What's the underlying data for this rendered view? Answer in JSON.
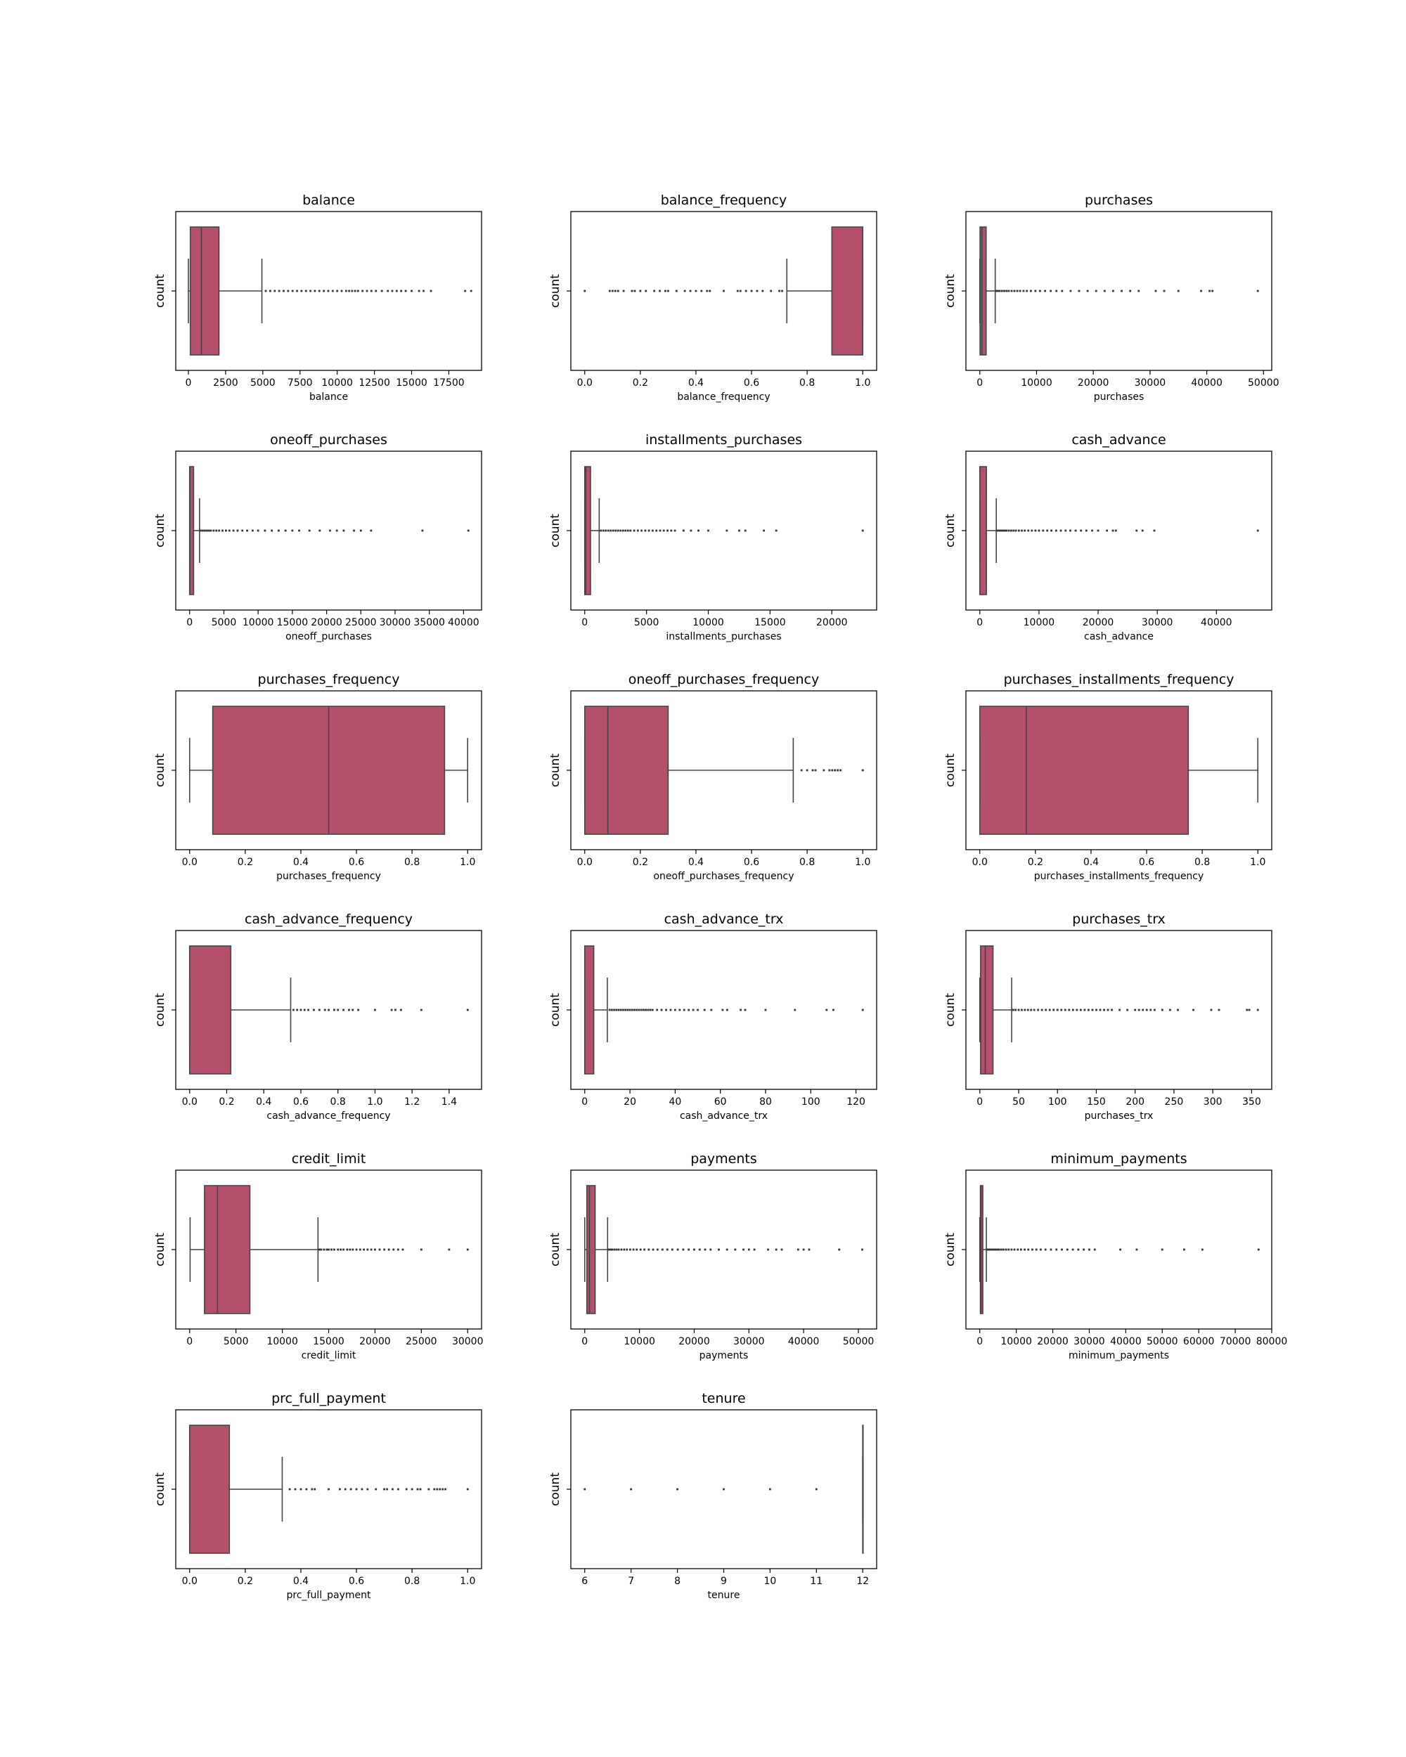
{
  "figure": {
    "box_color": "#b5506b",
    "line_color": "#444444"
  },
  "chart_data": [
    {
      "type": "box",
      "title": "balance",
      "xlabel": "balance",
      "ylabel": "count",
      "xlim": [
        -850,
        19700
      ],
      "ticks": [
        0,
        2500,
        5000,
        7500,
        10000,
        12500,
        15000,
        17500
      ],
      "tick_labels": [
        "0",
        "2500",
        "5000",
        "7500",
        "10000",
        "12500",
        "15000",
        "17500"
      ],
      "stats": {
        "whisker_low": 0,
        "q1": 128,
        "median": 873,
        "q3": 2054,
        "whisker_high": 4940
      },
      "outliers": [
        5200,
        5500,
        5800,
        6100,
        6400,
        6700,
        7000,
        7300,
        7600,
        7900,
        8200,
        8500,
        8800,
        9100,
        9400,
        9700,
        10000,
        10300,
        10600,
        10800,
        11000,
        11200,
        11400,
        11700,
        12000,
        12300,
        12600,
        13000,
        13400,
        13700,
        14000,
        14300,
        14600,
        15000,
        15500,
        15800,
        16300,
        18600,
        19000
      ]
    },
    {
      "type": "box",
      "title": "balance_frequency",
      "xlabel": "balance_frequency",
      "ylabel": "count",
      "xlim": [
        -0.05,
        1.05
      ],
      "ticks": [
        0,
        0.2,
        0.4,
        0.6,
        0.8,
        1.0
      ],
      "tick_labels": [
        "0.0",
        "0.2",
        "0.4",
        "0.6",
        "0.8",
        "1.0"
      ],
      "stats": {
        "whisker_low": 0.727,
        "q1": 0.889,
        "median": 1.0,
        "q3": 1.0,
        "whisker_high": 1.0
      },
      "outliers": [
        0.0,
        0.09,
        0.1,
        0.11,
        0.12,
        0.14,
        0.17,
        0.18,
        0.2,
        0.22,
        0.25,
        0.27,
        0.29,
        0.3,
        0.33,
        0.36,
        0.38,
        0.4,
        0.42,
        0.44,
        0.45,
        0.5,
        0.55,
        0.56,
        0.58,
        0.6,
        0.62,
        0.64,
        0.67,
        0.7,
        0.71
      ]
    },
    {
      "type": "box",
      "title": "purchases",
      "xlabel": "purchases",
      "ylabel": "count",
      "xlim": [
        -2450,
        51450
      ],
      "ticks": [
        0,
        10000,
        20000,
        30000,
        40000,
        50000
      ],
      "tick_labels": [
        "0",
        "10000",
        "20000",
        "30000",
        "40000",
        "50000"
      ],
      "stats": {
        "whisker_low": 0,
        "q1": 39,
        "median": 361,
        "q3": 1110,
        "whisker_high": 2715
      },
      "outliers": [
        2900,
        3200,
        3500,
        3900,
        4300,
        4700,
        5100,
        5600,
        6100,
        6600,
        7100,
        7700,
        8300,
        9000,
        9800,
        10600,
        11500,
        12500,
        13500,
        14500,
        16000,
        17500,
        19000,
        20500,
        22000,
        23500,
        25000,
        26500,
        28000,
        31000,
        32500,
        35000,
        39000,
        40500,
        41000,
        49000
      ]
    },
    {
      "type": "box",
      "title": "oneoff_purchases",
      "xlabel": "oneoff_purchases",
      "ylabel": "count",
      "xlim": [
        -2030,
        42630
      ],
      "ticks": [
        0,
        5000,
        10000,
        15000,
        20000,
        25000,
        30000,
        35000,
        40000
      ],
      "tick_labels": [
        "0",
        "5000",
        "10000",
        "15000",
        "20000",
        "25000",
        "30000",
        "35000",
        "40000"
      ],
      "stats": {
        "whisker_low": 0,
        "q1": 0,
        "median": 38,
        "q3": 577,
        "whisker_high": 1443
      },
      "outliers": [
        1600,
        1900,
        2200,
        2500,
        2800,
        3100,
        3500,
        3900,
        4300,
        4800,
        5300,
        5800,
        6400,
        7000,
        7700,
        8400,
        9200,
        10000,
        11000,
        12000,
        13000,
        14000,
        15000,
        16000,
        17500,
        19000,
        20500,
        21500,
        22500,
        24000,
        25000,
        26500,
        34000,
        40700
      ]
    },
    {
      "type": "box",
      "title": "installments_purchases",
      "xlabel": "installments_purchases",
      "ylabel": "count",
      "xlim": [
        -1125,
        23625
      ],
      "ticks": [
        0,
        5000,
        10000,
        15000,
        20000
      ],
      "tick_labels": [
        "0",
        "5000",
        "10000",
        "15000",
        "20000"
      ],
      "stats": {
        "whisker_low": 0,
        "q1": 0,
        "median": 89,
        "q3": 468,
        "whisker_high": 1170
      },
      "outliers": [
        1300,
        1500,
        1700,
        1900,
        2100,
        2300,
        2500,
        2700,
        2900,
        3100,
        3300,
        3500,
        3700,
        4000,
        4300,
        4600,
        4900,
        5200,
        5500,
        5800,
        6100,
        6400,
        6700,
        7000,
        7300,
        8000,
        8600,
        9200,
        10000,
        11500,
        12500,
        13000,
        14500,
        15500,
        22500
      ]
    },
    {
      "type": "box",
      "title": "cash_advance",
      "xlabel": "cash_advance",
      "ylabel": "count",
      "xlim": [
        -2350,
        49350
      ],
      "ticks": [
        0,
        10000,
        20000,
        30000,
        40000
      ],
      "tick_labels": [
        "0",
        "10000",
        "20000",
        "30000",
        "40000"
      ],
      "stats": {
        "whisker_low": 0,
        "q1": 0,
        "median": 0,
        "q3": 1114,
        "whisker_high": 2785
      },
      "outliers": [
        3000,
        3300,
        3600,
        3900,
        4200,
        4500,
        4900,
        5300,
        5700,
        6100,
        6600,
        7100,
        7600,
        8200,
        8800,
        9400,
        10000,
        10700,
        11400,
        12100,
        12900,
        13700,
        14500,
        15300,
        16200,
        17100,
        18000,
        19000,
        20000,
        21500,
        22500,
        23000,
        26500,
        27500,
        29500,
        47000
      ]
    },
    {
      "type": "box",
      "title": "purchases_frequency",
      "xlabel": "purchases_frequency",
      "ylabel": "count",
      "xlim": [
        -0.05,
        1.05
      ],
      "ticks": [
        0,
        0.2,
        0.4,
        0.6,
        0.8,
        1.0
      ],
      "tick_labels": [
        "0.0",
        "0.2",
        "0.4",
        "0.6",
        "0.8",
        "1.0"
      ],
      "stats": {
        "whisker_low": 0,
        "q1": 0.083,
        "median": 0.5,
        "q3": 0.917,
        "whisker_high": 1.0
      },
      "outliers": []
    },
    {
      "type": "box",
      "title": "oneoff_purchases_frequency",
      "xlabel": "oneoff_purchases_frequency",
      "ylabel": "count",
      "xlim": [
        -0.05,
        1.05
      ],
      "ticks": [
        0,
        0.2,
        0.4,
        0.6,
        0.8,
        1.0
      ],
      "tick_labels": [
        "0.0",
        "0.2",
        "0.4",
        "0.6",
        "0.8",
        "1.0"
      ],
      "stats": {
        "whisker_low": 0,
        "q1": 0,
        "median": 0.083,
        "q3": 0.3,
        "whisker_high": 0.75
      },
      "outliers": [
        0.78,
        0.8,
        0.82,
        0.83,
        0.86,
        0.88,
        0.89,
        0.9,
        0.91,
        0.92,
        1.0
      ]
    },
    {
      "type": "box",
      "title": "purchases_installments_frequency",
      "xlabel": "purchases_installments_frequency",
      "ylabel": "count",
      "xlim": [
        -0.05,
        1.05
      ],
      "ticks": [
        0,
        0.2,
        0.4,
        0.6,
        0.8,
        1.0
      ],
      "tick_labels": [
        "0.0",
        "0.2",
        "0.4",
        "0.6",
        "0.8",
        "1.0"
      ],
      "stats": {
        "whisker_low": 0,
        "q1": 0,
        "median": 0.167,
        "q3": 0.75,
        "whisker_high": 1.0
      },
      "outliers": []
    },
    {
      "type": "box",
      "title": "cash_advance_frequency",
      "xlabel": "cash_advance_frequency",
      "ylabel": "count",
      "xlim": [
        -0.075,
        1.575
      ],
      "ticks": [
        0,
        0.2,
        0.4,
        0.6,
        0.8,
        1.0,
        1.2,
        1.4
      ],
      "tick_labels": [
        "0.0",
        "0.2",
        "0.4",
        "0.6",
        "0.8",
        "1.0",
        "1.2",
        "1.4"
      ],
      "stats": {
        "whisker_low": 0,
        "q1": 0,
        "median": 0,
        "q3": 0.222,
        "whisker_high": 0.545
      },
      "outliers": [
        0.56,
        0.58,
        0.6,
        0.62,
        0.64,
        0.67,
        0.7,
        0.73,
        0.75,
        0.78,
        0.8,
        0.83,
        0.86,
        0.88,
        0.91,
        1.0,
        1.09,
        1.11,
        1.14,
        1.25,
        1.5
      ]
    },
    {
      "type": "box",
      "title": "cash_advance_trx",
      "xlabel": "cash_advance_trx",
      "ylabel": "count",
      "xlim": [
        -6.15,
        129.15
      ],
      "ticks": [
        0,
        20,
        40,
        60,
        80,
        100,
        120
      ],
      "tick_labels": [
        "0",
        "20",
        "40",
        "60",
        "80",
        "100",
        "120"
      ],
      "stats": {
        "whisker_low": 0,
        "q1": 0,
        "median": 0,
        "q3": 4,
        "whisker_high": 10
      },
      "outliers": [
        11,
        12,
        13,
        14,
        15,
        16,
        17,
        18,
        19,
        20,
        21,
        22,
        23,
        24,
        25,
        26,
        27,
        28,
        29,
        30,
        32,
        34,
        36,
        38,
        40,
        42,
        44,
        46,
        48,
        50,
        53,
        56,
        61,
        63,
        69,
        71,
        80,
        93,
        107,
        110,
        123
      ]
    },
    {
      "type": "box",
      "title": "purchases_trx",
      "xlabel": "purchases_trx",
      "ylabel": "count",
      "xlim": [
        -17.9,
        375.9
      ],
      "ticks": [
        0,
        50,
        100,
        150,
        200,
        250,
        300,
        350
      ],
      "tick_labels": [
        "0",
        "50",
        "100",
        "150",
        "200",
        "250",
        "300",
        "350"
      ],
      "stats": {
        "whisker_low": 0,
        "q1": 1,
        "median": 7,
        "q3": 17,
        "whisker_high": 41
      },
      "outliers": [
        43,
        46,
        50,
        54,
        58,
        62,
        66,
        70,
        75,
        80,
        85,
        90,
        95,
        100,
        105,
        110,
        115,
        120,
        125,
        130,
        135,
        140,
        145,
        150,
        155,
        160,
        165,
        170,
        180,
        190,
        200,
        205,
        210,
        215,
        220,
        225,
        235,
        245,
        255,
        275,
        298,
        308,
        344,
        347,
        358
      ]
    },
    {
      "type": "box",
      "title": "credit_limit",
      "xlabel": "credit_limit",
      "ylabel": "count",
      "xlim": [
        -1500,
        31500
      ],
      "ticks": [
        0,
        5000,
        10000,
        15000,
        20000,
        25000,
        30000
      ],
      "tick_labels": [
        "0",
        "5000",
        "10000",
        "15000",
        "20000",
        "25000",
        "30000"
      ],
      "stats": {
        "whisker_low": 50,
        "q1": 1600,
        "median": 3000,
        "q3": 6500,
        "whisker_high": 13850
      },
      "outliers": [
        14000,
        14200,
        14500,
        14800,
        15000,
        15300,
        15600,
        16000,
        16300,
        16600,
        17000,
        17300,
        17600,
        18000,
        18400,
        18800,
        19200,
        19600,
        20000,
        20500,
        21000,
        21500,
        22000,
        22500,
        23000,
        25000,
        28000,
        30000
      ]
    },
    {
      "type": "box",
      "title": "payments",
      "xlabel": "payments",
      "ylabel": "count",
      "xlim": [
        -2540,
        53340
      ],
      "ticks": [
        0,
        10000,
        20000,
        30000,
        40000,
        50000
      ],
      "tick_labels": [
        "0",
        "10000",
        "20000",
        "30000",
        "40000",
        "50000"
      ],
      "stats": {
        "whisker_low": 0,
        "q1": 384,
        "median": 857,
        "q3": 1901,
        "whisker_high": 4177
      },
      "outliers": [
        4400,
        4700,
        5000,
        5400,
        5800,
        6200,
        6700,
        7200,
        7700,
        8300,
        8900,
        9500,
        10200,
        10900,
        11700,
        12500,
        13300,
        14200,
        15100,
        16000,
        17000,
        18000,
        19000,
        20000,
        21000,
        22000,
        23000,
        24500,
        26000,
        27500,
        29000,
        30000,
        31000,
        33500,
        35000,
        36000,
        39000,
        40000,
        41000,
        46500,
        50700
      ]
    },
    {
      "type": "box",
      "title": "minimum_payments",
      "xlabel": "minimum_payments",
      "ylabel": "count",
      "xlim": [
        -3800,
        80000
      ],
      "ticks": [
        0,
        10000,
        20000,
        30000,
        40000,
        50000,
        60000,
        70000,
        80000
      ],
      "tick_labels": [
        "0",
        "10000",
        "20000",
        "30000",
        "40000",
        "50000",
        "60000",
        "70000",
        "80000"
      ],
      "stats": {
        "whisker_low": 0,
        "q1": 170,
        "median": 312,
        "q3": 825,
        "whisker_high": 1800
      },
      "outliers": [
        2000,
        2300,
        2600,
        3000,
        3400,
        3800,
        4300,
        4800,
        5300,
        5900,
        6500,
        7200,
        7900,
        8700,
        9500,
        10400,
        11300,
        12300,
        13300,
        14400,
        15500,
        16700,
        18000,
        19500,
        21000,
        22500,
        24000,
        25500,
        27000,
        28500,
        30000,
        31500,
        38500,
        43000,
        50000,
        56000,
        61000,
        76400
      ]
    },
    {
      "type": "box",
      "title": "prc_full_payment",
      "xlabel": "prc_full_payment",
      "ylabel": "count",
      "xlim": [
        -0.05,
        1.05
      ],
      "ticks": [
        0,
        0.2,
        0.4,
        0.6,
        0.8,
        1.0
      ],
      "tick_labels": [
        "0.0",
        "0.2",
        "0.4",
        "0.6",
        "0.8",
        "1.0"
      ],
      "stats": {
        "whisker_low": 0,
        "q1": 0,
        "median": 0,
        "q3": 0.143,
        "whisker_high": 0.333
      },
      "outliers": [
        0.36,
        0.38,
        0.4,
        0.42,
        0.44,
        0.45,
        0.5,
        0.54,
        0.56,
        0.58,
        0.6,
        0.62,
        0.64,
        0.67,
        0.7,
        0.71,
        0.73,
        0.75,
        0.78,
        0.8,
        0.82,
        0.83,
        0.86,
        0.88,
        0.89,
        0.9,
        0.91,
        0.92,
        1.0
      ]
    },
    {
      "type": "box",
      "title": "tenure",
      "xlabel": "tenure",
      "ylabel": "count",
      "xlim": [
        5.7,
        12.3
      ],
      "ticks": [
        6,
        7,
        8,
        9,
        10,
        11,
        12
      ],
      "tick_labels": [
        "6",
        "7",
        "8",
        "9",
        "10",
        "11",
        "12"
      ],
      "stats": {
        "whisker_low": 12,
        "q1": 12,
        "median": 12,
        "q3": 12,
        "whisker_high": 12
      },
      "outliers": [
        6,
        7,
        8,
        9,
        10,
        11
      ]
    }
  ]
}
